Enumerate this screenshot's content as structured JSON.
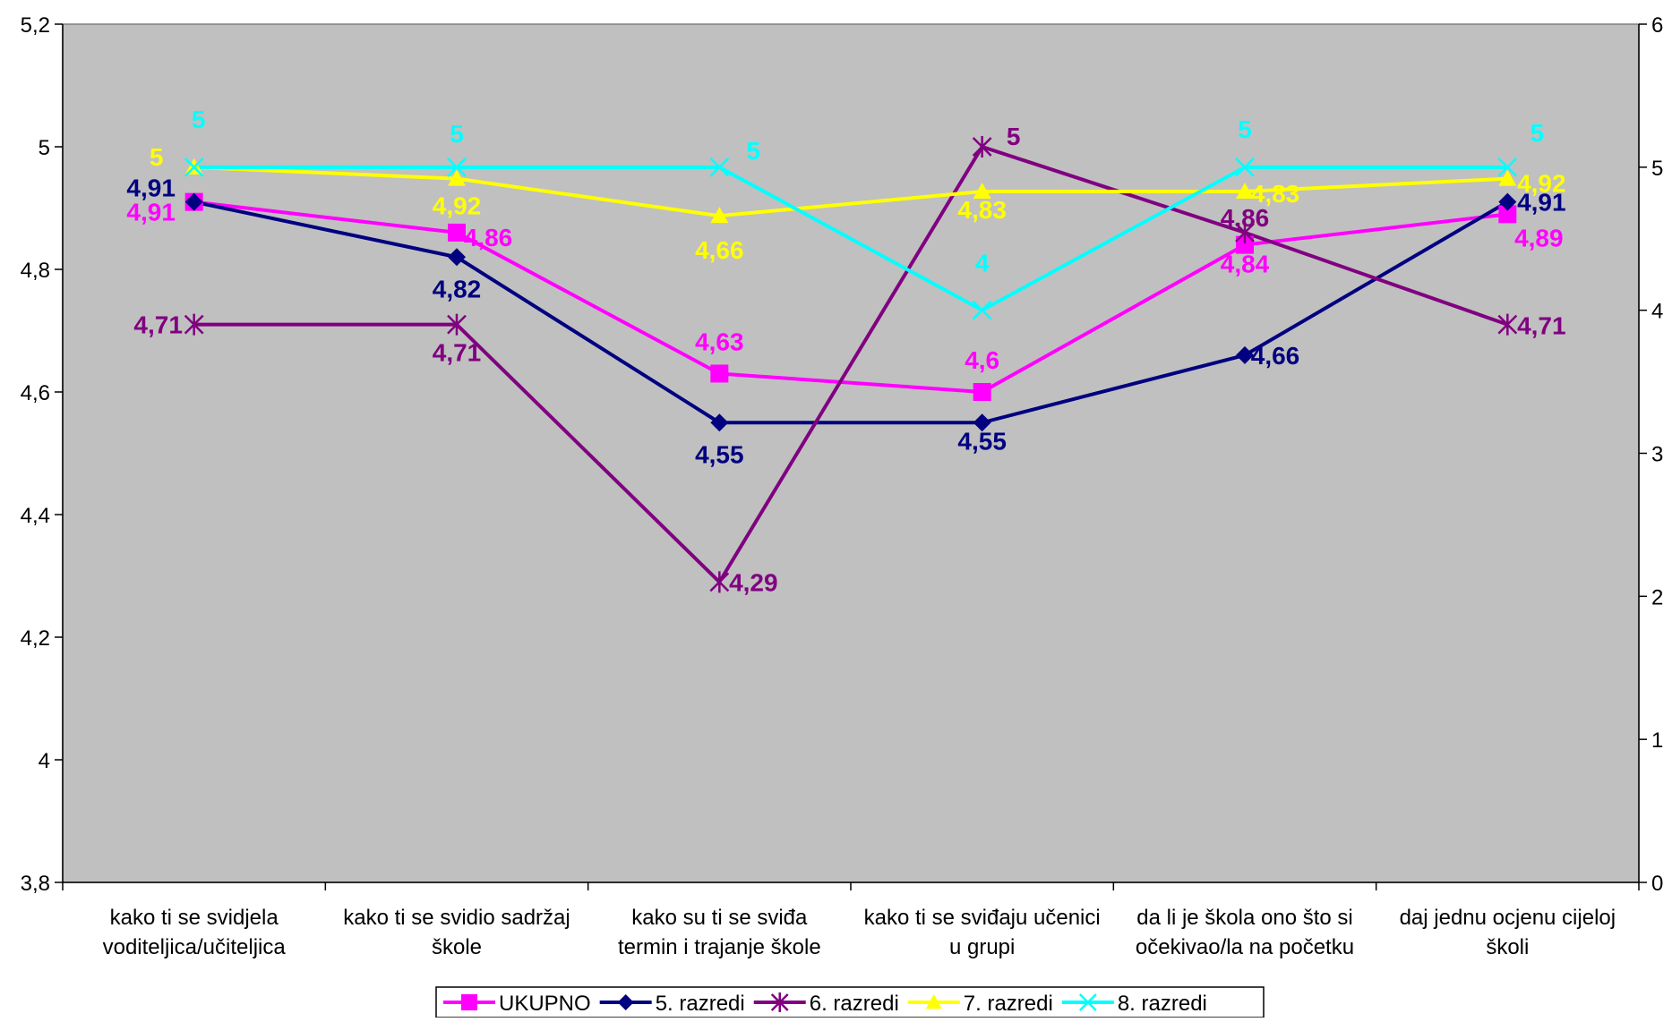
{
  "chart_data": {
    "type": "line",
    "categories": [
      [
        "kako ti se svidjela",
        "voditeljica/učiteljica"
      ],
      [
        "kako ti se svidio sadržaj",
        "škole"
      ],
      [
        "kako su ti se sviđa",
        "termin i trajanje škole"
      ],
      [
        "kako ti se sviđaju učenici",
        "u grupi"
      ],
      [
        "da li je škola ono što si",
        "očekivao/la na početku"
      ],
      [
        "daj jednu ocjenu cijeloj",
        "školi"
      ]
    ],
    "y_left": {
      "min": 3.8,
      "max": 5.2,
      "ticks": [
        3.8,
        4.0,
        4.2,
        4.4,
        4.6,
        4.8,
        5.0,
        5.2
      ],
      "tick_labels": [
        "3,8",
        "4",
        "4,2",
        "4,4",
        "4,6",
        "4,8",
        "5",
        "5,2"
      ]
    },
    "y_right": {
      "min": 0,
      "max": 6,
      "ticks": [
        0,
        1,
        2,
        3,
        4,
        5,
        6
      ],
      "tick_labels": [
        "0",
        "1",
        "2",
        "3",
        "4",
        "5",
        "6"
      ]
    },
    "plot_background": "#c0c0c0",
    "legend_position": "bottom",
    "series": [
      {
        "name": "UKUPNO",
        "color": "#ff00ff",
        "marker": "square",
        "axis": "left",
        "values": [
          4.91,
          4.86,
          4.63,
          4.6,
          4.84,
          4.89
        ],
        "labels": [
          "4,91",
          "4,86",
          "4,63",
          "4,6",
          "4,84",
          "4,89"
        ]
      },
      {
        "name": "5. razredi",
        "color": "#000080",
        "marker": "diamond",
        "axis": "left",
        "values": [
          4.91,
          4.82,
          4.55,
          4.55,
          4.66,
          4.91
        ],
        "labels": [
          "4,91",
          "4,82",
          "4,55",
          "4,55",
          "4,66",
          "4,91"
        ]
      },
      {
        "name": "6. razredi",
        "color": "#800080",
        "marker": "star",
        "axis": "left",
        "values": [
          4.71,
          4.71,
          4.29,
          5.0,
          4.86,
          4.71
        ],
        "labels": [
          "4,71",
          "4,71",
          "4,29",
          "5",
          "4,86",
          "4,71"
        ]
      },
      {
        "name": "7. razredi",
        "color": "#ffff00",
        "marker": "triangle",
        "axis": "right",
        "values": [
          5.0,
          4.92,
          4.66,
          4.83,
          4.83,
          4.92
        ],
        "labels": [
          "5",
          "4,92",
          "4,66",
          "4,83",
          "4,83",
          "4,92"
        ]
      },
      {
        "name": "8. razredi",
        "color": "#00ffff",
        "marker": "x",
        "axis": "right",
        "values": [
          5,
          5,
          5,
          4,
          5,
          5
        ],
        "labels": [
          "5",
          "5",
          "5",
          "4",
          "5",
          "5"
        ]
      }
    ]
  }
}
